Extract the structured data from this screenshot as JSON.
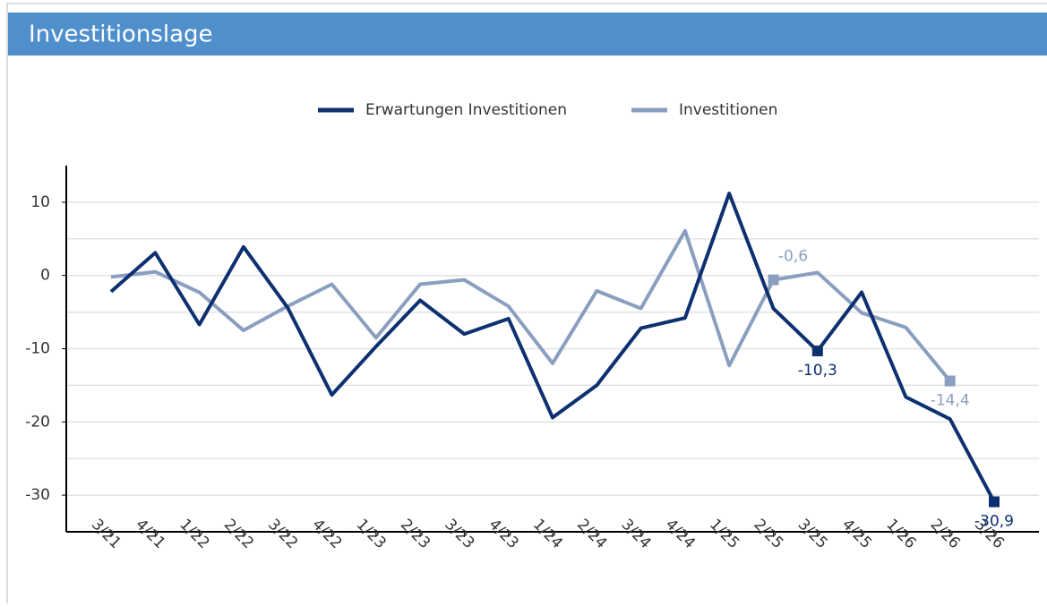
{
  "chart_data": {
    "type": "line",
    "title": "Investitionslage",
    "categories": [
      "3/21",
      "4/21",
      "1/22",
      "2/22",
      "3/22",
      "4/22",
      "1/23",
      "2/23",
      "3/23",
      "4/23",
      "1/24",
      "2/24",
      "3/24",
      "4/24",
      "1/25",
      "2/25",
      "3/25",
      "4/25",
      "1/26",
      "2/26",
      "3/26"
    ],
    "series": [
      {
        "name": "Erwartungen Investitionen",
        "color": "#0d3070",
        "values": [
          -2.2,
          3.1,
          -6.7,
          3.9,
          -4.4,
          -16.3,
          -9.7,
          -3.4,
          -8.0,
          -5.9,
          -19.4,
          -15.0,
          -7.2,
          -5.8,
          11.2,
          -4.5,
          -10.3,
          -2.3,
          -16.6,
          -19.6,
          -30.9
        ],
        "value_labels": [
          null,
          null,
          null,
          null,
          null,
          null,
          null,
          null,
          null,
          null,
          null,
          null,
          null,
          null,
          null,
          null,
          "-10,3",
          null,
          null,
          null,
          "-30,9"
        ]
      },
      {
        "name": "Investitionen",
        "color": "#8a9fc0",
        "values": [
          -0.2,
          0.5,
          -2.3,
          -7.5,
          -4.2,
          -1.2,
          -8.5,
          -1.2,
          -0.6,
          -4.2,
          -12.0,
          -2.1,
          -4.5,
          6.1,
          -12.3,
          -0.6,
          0.4,
          -5.1,
          -7.1,
          -14.4,
          null
        ],
        "value_labels": [
          null,
          null,
          null,
          null,
          null,
          null,
          null,
          null,
          null,
          null,
          null,
          null,
          null,
          null,
          null,
          "-0,6",
          null,
          null,
          null,
          "-14,4",
          null
        ]
      }
    ],
    "ylim": [
      -35,
      15
    ],
    "yticks": [
      -30,
      -20,
      -10,
      0,
      10
    ],
    "ygrid": [
      -30,
      -25,
      -20,
      -15,
      -10,
      -5,
      0,
      5,
      10
    ],
    "grid": true
  }
}
